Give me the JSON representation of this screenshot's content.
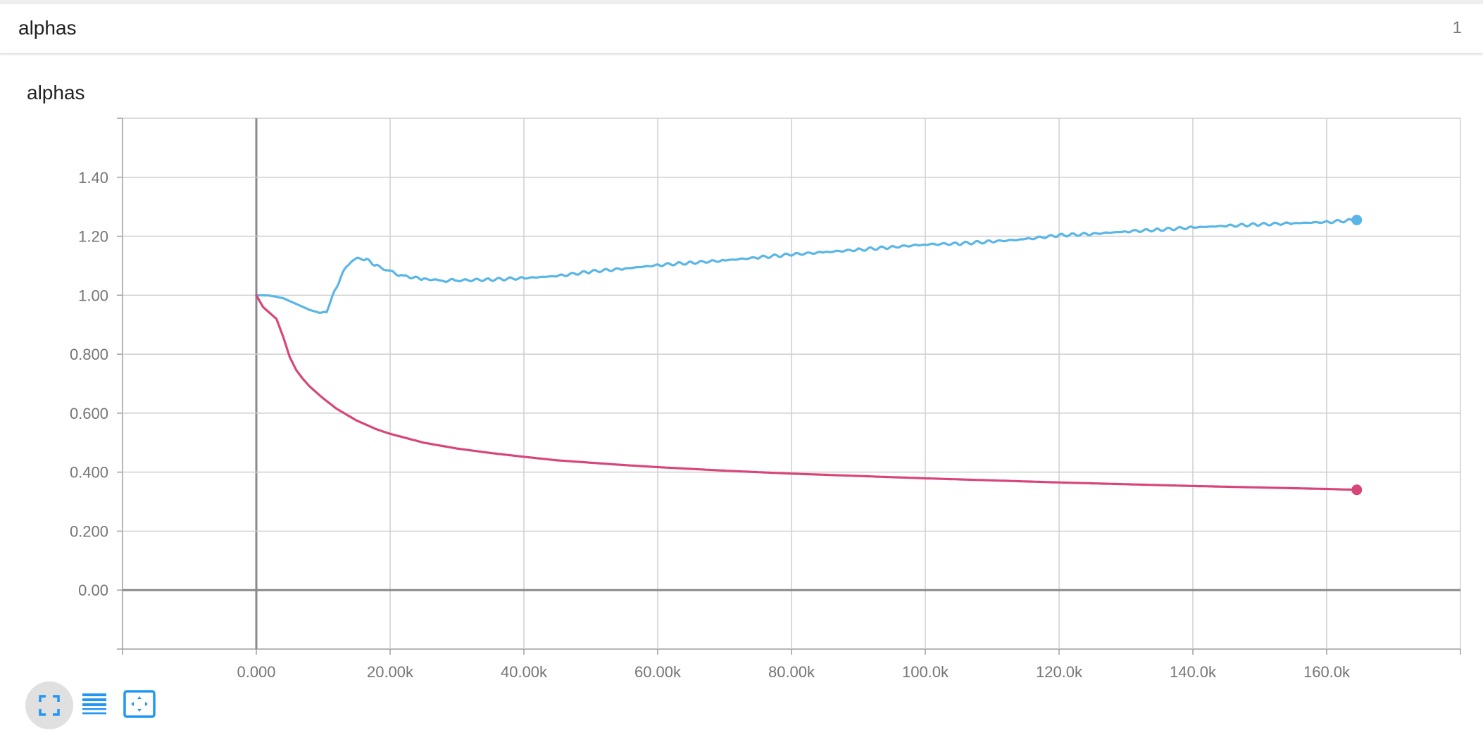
{
  "header": {
    "title": "alphas",
    "count": "1"
  },
  "card": {
    "title": "alphas"
  },
  "toolbar": {
    "buttons": [
      {
        "icon": "fullscreen-icon",
        "active": true
      },
      {
        "icon": "list-icon",
        "active": false
      },
      {
        "icon": "fit-domain-icon",
        "active": false
      }
    ],
    "icon_color": "#2196f3"
  },
  "colors": {
    "series_blue": "#5ab6e6",
    "series_pink": "#d7467a",
    "grid": "#cfcfcf",
    "axis": "#9e9e9e",
    "tick_text": "#757575"
  },
  "chart_data": {
    "type": "line",
    "title": "",
    "xlabel": "",
    "ylabel": "",
    "xlim": [
      -20000,
      180000
    ],
    "ylim": [
      -0.2,
      1.6
    ],
    "x_ticks": [
      0,
      20000,
      40000,
      60000,
      80000,
      100000,
      120000,
      140000,
      160000
    ],
    "x_tick_labels": [
      "0.000",
      "20.00k",
      "40.00k",
      "60.00k",
      "80.00k",
      "100.0k",
      "120.0k",
      "140.0k",
      "160.0k"
    ],
    "y_ticks": [
      0,
      0.2,
      0.4,
      0.6,
      0.8,
      1.0,
      1.2,
      1.4
    ],
    "y_tick_labels": [
      "0.00",
      "0.200",
      "0.400",
      "0.600",
      "0.800",
      "1.00",
      "1.20",
      "1.40"
    ],
    "grid": true,
    "legend": "none",
    "series": [
      {
        "color": "#5ab6e6",
        "x": [
          0,
          2000,
          4000,
          6000,
          8000,
          9500,
          10500,
          12000,
          13500,
          15000,
          16500,
          18000,
          20000,
          22000,
          25000,
          28000,
          30000,
          35000,
          40000,
          45000,
          50000,
          55000,
          60000,
          65000,
          70000,
          75000,
          80000,
          85000,
          90000,
          95000,
          100000,
          105000,
          110000,
          115000,
          120000,
          125000,
          130000,
          135000,
          140000,
          145000,
          150000,
          155000,
          160000,
          164500
        ],
        "y": [
          1.0,
          0.999,
          0.99,
          0.97,
          0.95,
          0.94,
          0.945,
          1.03,
          1.1,
          1.125,
          1.12,
          1.1,
          1.08,
          1.065,
          1.055,
          1.05,
          1.05,
          1.053,
          1.058,
          1.065,
          1.08,
          1.09,
          1.102,
          1.11,
          1.118,
          1.128,
          1.138,
          1.146,
          1.154,
          1.163,
          1.172,
          1.175,
          1.182,
          1.19,
          1.203,
          1.208,
          1.216,
          1.222,
          1.23,
          1.235,
          1.24,
          1.244,
          1.248,
          1.255
        ]
      },
      {
        "color": "#d7467a",
        "x": [
          0,
          1000,
          2000,
          3000,
          4000,
          5000,
          6000,
          7000,
          8000,
          10000,
          12000,
          15000,
          18000,
          20000,
          25000,
          30000,
          35000,
          40000,
          45000,
          50000,
          55000,
          60000,
          70000,
          80000,
          90000,
          100000,
          110000,
          120000,
          130000,
          140000,
          150000,
          160000,
          164500
        ],
        "y": [
          1.0,
          0.96,
          0.94,
          0.92,
          0.86,
          0.79,
          0.745,
          0.715,
          0.69,
          0.65,
          0.615,
          0.575,
          0.545,
          0.53,
          0.5,
          0.48,
          0.465,
          0.452,
          0.44,
          0.432,
          0.424,
          0.417,
          0.405,
          0.395,
          0.387,
          0.379,
          0.372,
          0.365,
          0.359,
          0.353,
          0.348,
          0.343,
          0.34
        ]
      }
    ]
  }
}
